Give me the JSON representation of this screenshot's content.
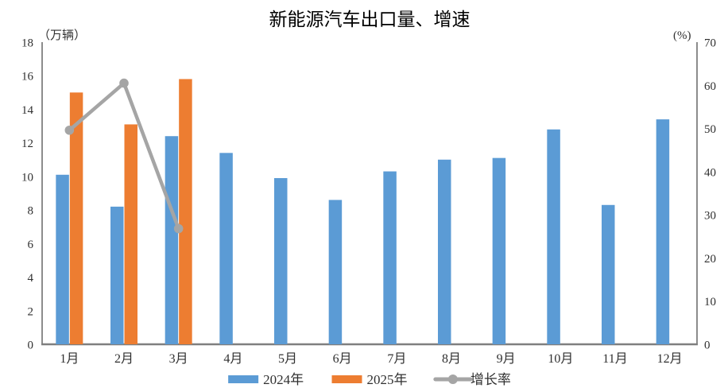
{
  "chart_data": {
    "type": "bar+line",
    "title": "新能源汽车出口量、增速",
    "categories": [
      "1月",
      "2月",
      "3月",
      "4月",
      "5月",
      "6月",
      "7月",
      "8月",
      "9月",
      "10月",
      "11月",
      "12月"
    ],
    "series": [
      {
        "name": "2024年",
        "type": "bar",
        "axis": "left",
        "color": "#5B9BD5",
        "values": [
          10.1,
          8.2,
          12.4,
          11.4,
          9.9,
          8.6,
          10.3,
          11.0,
          11.1,
          12.8,
          8.3,
          13.4
        ]
      },
      {
        "name": "2025年",
        "type": "bar",
        "axis": "left",
        "color": "#ED7D31",
        "values": [
          15.0,
          13.1,
          15.8,
          null,
          null,
          null,
          null,
          null,
          null,
          null,
          null,
          null
        ]
      },
      {
        "name": "增长率",
        "type": "line",
        "axis": "right",
        "color": "#A5A5A5",
        "values": [
          49.6,
          60.5,
          26.8,
          null,
          null,
          null,
          null,
          null,
          null,
          null,
          null,
          null
        ]
      }
    ],
    "left_axis": {
      "label": "（万辆）",
      "min": 0,
      "max": 18,
      "step": 2
    },
    "right_axis": {
      "label": "(%)",
      "min": 0,
      "max": 70,
      "step": 10
    },
    "axis_color": "#7F7F7F",
    "grid": false,
    "legend_position": "bottom"
  }
}
